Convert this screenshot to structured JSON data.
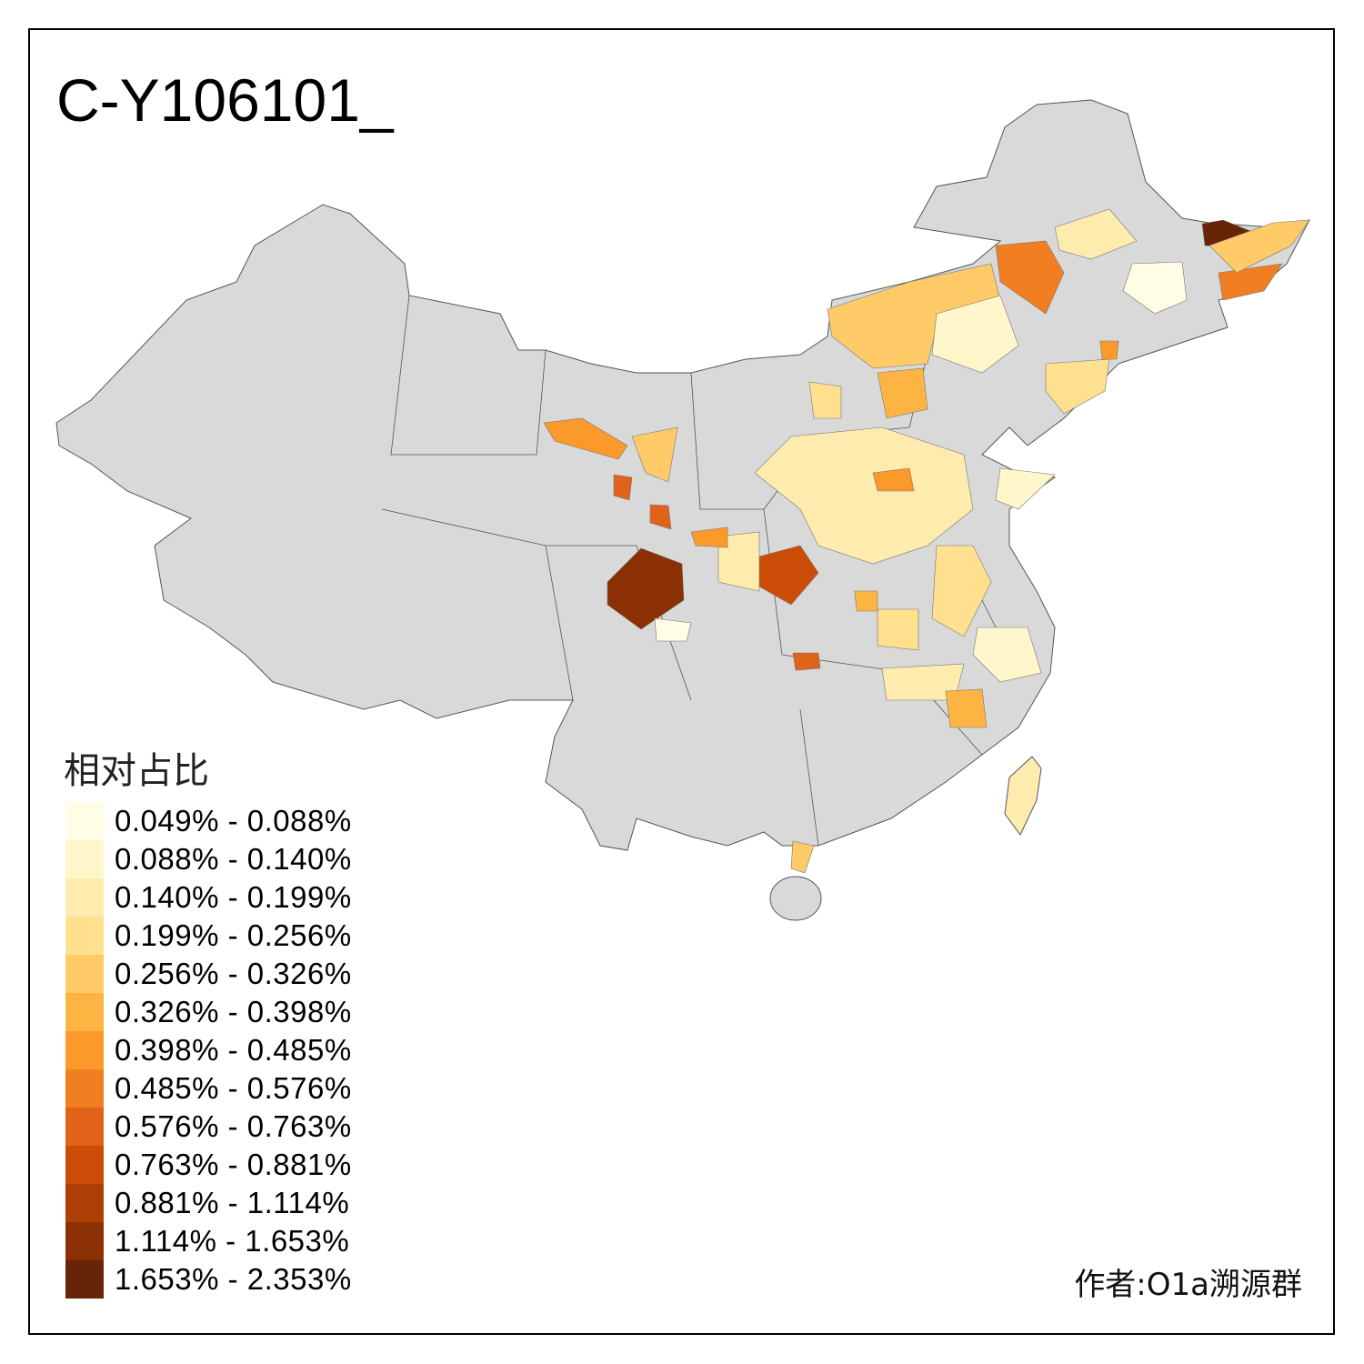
{
  "title": "C-Y106101_",
  "legend": {
    "title": "相对占比",
    "classes": [
      {
        "label": "0.049% - 0.088%",
        "color": "#FFFDE6"
      },
      {
        "label": "0.088% - 0.140%",
        "color": "#FFF7CB"
      },
      {
        "label": "0.140% - 0.199%",
        "color": "#FEEBAE"
      },
      {
        "label": "0.199% - 0.256%",
        "color": "#FEE08F"
      },
      {
        "label": "0.256% - 0.326%",
        "color": "#FECB68"
      },
      {
        "label": "0.326% - 0.398%",
        "color": "#FDB443"
      },
      {
        "label": "0.398% - 0.485%",
        "color": "#FB9A2A"
      },
      {
        "label": "0.485% - 0.576%",
        "color": "#F17F21"
      },
      {
        "label": "0.576% - 0.763%",
        "color": "#E1631A"
      },
      {
        "label": "0.763% - 0.881%",
        "color": "#CB4C06"
      },
      {
        "label": "0.881% - 1.114%",
        "color": "#AD3F04"
      },
      {
        "label": "1.114% - 1.653%",
        "color": "#8A3004"
      },
      {
        "label": "1.653% - 2.353%",
        "color": "#662506"
      }
    ]
  },
  "no_data_color": "#D9D9D9",
  "credit": "作者:O1a溯源群"
}
